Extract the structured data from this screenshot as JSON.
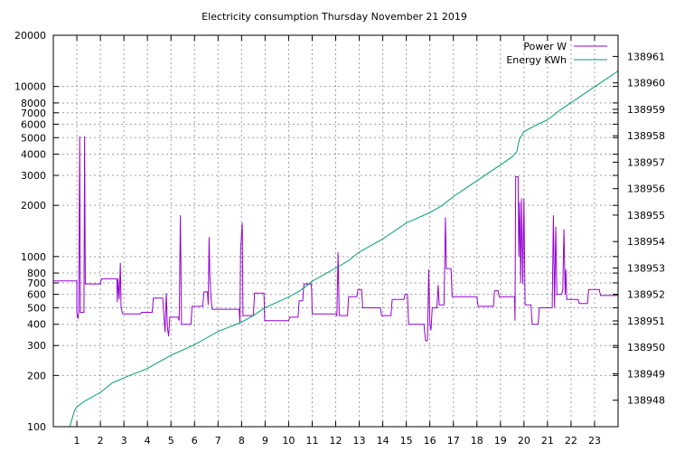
{
  "chart_data": {
    "type": "line",
    "title": "Electricity consumption Thursday November 21 2019",
    "x": {
      "min": 0,
      "max": 24,
      "ticks": [
        1,
        2,
        3,
        4,
        5,
        6,
        7,
        8,
        9,
        10,
        11,
        12,
        13,
        14,
        15,
        16,
        17,
        18,
        19,
        20,
        21,
        22,
        23
      ]
    },
    "y_left": {
      "scale": "log",
      "min": 100,
      "max": 20000,
      "ticks": [
        100,
        200,
        300,
        400,
        500,
        600,
        700,
        800,
        1000,
        2000,
        3000,
        4000,
        5000,
        6000,
        7000,
        8000,
        10000,
        20000
      ],
      "tick_labels": [
        "100",
        "200",
        "300",
        "400",
        "500",
        "600",
        "700",
        "800",
        "1000",
        "2000",
        "3000",
        "4000",
        "5000",
        "6000",
        "7000",
        "8000",
        "10000",
        "20000"
      ]
    },
    "y_right": {
      "scale": "linear",
      "min": 138947.0,
      "max": 138961.8,
      "ticks": [
        138948,
        138949,
        138950,
        138951,
        138952,
        138953,
        138954,
        138955,
        138956,
        138957,
        138958,
        138959,
        138960,
        138961
      ],
      "tick_labels": [
        "138948",
        "138949",
        "138950",
        "138951",
        "138952",
        "138953",
        "138954",
        "138955",
        "138956",
        "138957",
        "138958",
        "138959",
        "138960",
        "138961"
      ]
    },
    "grid": true,
    "legend_position": "top-right",
    "series": [
      {
        "name": "Power W",
        "color": "#9400d3",
        "axis": "left",
        "points": [
          [
            0,
            720
          ],
          [
            1.0,
            720
          ],
          [
            1.0,
            470
          ],
          [
            1.05,
            430
          ],
          [
            1.08,
            470
          ],
          [
            1.12,
            5100
          ],
          [
            1.15,
            470
          ],
          [
            1.3,
            470
          ],
          [
            1.33,
            5100
          ],
          [
            1.36,
            690
          ],
          [
            2.0,
            690
          ],
          [
            2.05,
            740
          ],
          [
            2.7,
            740
          ],
          [
            2.72,
            540
          ],
          [
            2.75,
            740
          ],
          [
            2.8,
            560
          ],
          [
            2.85,
            920
          ],
          [
            2.88,
            500
          ],
          [
            2.95,
            460
          ],
          [
            3.7,
            460
          ],
          [
            3.75,
            470
          ],
          [
            4.2,
            470
          ],
          [
            4.25,
            570
          ],
          [
            4.65,
            570
          ],
          [
            4.7,
            450
          ],
          [
            4.75,
            360
          ],
          [
            4.8,
            610
          ],
          [
            4.85,
            380
          ],
          [
            4.9,
            340
          ],
          [
            4.95,
            440
          ],
          [
            5.3,
            440
          ],
          [
            5.35,
            420
          ],
          [
            5.4,
            1750
          ],
          [
            5.45,
            400
          ],
          [
            5.85,
            400
          ],
          [
            5.9,
            510
          ],
          [
            6.35,
            510
          ],
          [
            6.4,
            620
          ],
          [
            6.55,
            620
          ],
          [
            6.58,
            520
          ],
          [
            6.62,
            1300
          ],
          [
            6.65,
            780
          ],
          [
            6.7,
            570
          ],
          [
            6.75,
            490
          ],
          [
            7.9,
            490
          ],
          [
            7.93,
            410
          ],
          [
            7.96,
            1100
          ],
          [
            8.0,
            1350
          ],
          [
            8.03,
            1580
          ],
          [
            8.06,
            450
          ],
          [
            8.5,
            450
          ],
          [
            8.55,
            610
          ],
          [
            8.95,
            610
          ],
          [
            8.98,
            420
          ],
          [
            10.0,
            420
          ],
          [
            10.05,
            440
          ],
          [
            10.4,
            440
          ],
          [
            10.45,
            550
          ],
          [
            10.6,
            550
          ],
          [
            10.65,
            690
          ],
          [
            10.95,
            690
          ],
          [
            10.98,
            640
          ],
          [
            11.0,
            460
          ],
          [
            12.0,
            460
          ],
          [
            12.05,
            450
          ],
          [
            12.1,
            1060
          ],
          [
            12.15,
            450
          ],
          [
            12.5,
            450
          ],
          [
            12.55,
            580
          ],
          [
            12.9,
            580
          ],
          [
            12.95,
            640
          ],
          [
            13.1,
            640
          ],
          [
            13.15,
            500
          ],
          [
            13.9,
            500
          ],
          [
            13.95,
            450
          ],
          [
            14.35,
            450
          ],
          [
            14.4,
            560
          ],
          [
            14.9,
            560
          ],
          [
            14.95,
            600
          ],
          [
            15.05,
            600
          ],
          [
            15.1,
            400
          ],
          [
            15.75,
            400
          ],
          [
            15.78,
            360
          ],
          [
            15.82,
            320
          ],
          [
            15.9,
            320
          ],
          [
            15.95,
            840
          ],
          [
            16.0,
            400
          ],
          [
            16.05,
            370
          ],
          [
            16.1,
            500
          ],
          [
            16.3,
            500
          ],
          [
            16.35,
            680
          ],
          [
            16.4,
            520
          ],
          [
            16.6,
            520
          ],
          [
            16.63,
            870
          ],
          [
            16.66,
            1700
          ],
          [
            16.7,
            850
          ],
          [
            16.9,
            850
          ],
          [
            16.95,
            580
          ],
          [
            18.0,
            580
          ],
          [
            18.05,
            510
          ],
          [
            18.7,
            510
          ],
          [
            18.75,
            630
          ],
          [
            18.9,
            630
          ],
          [
            18.95,
            580
          ],
          [
            19.6,
            580
          ],
          [
            19.62,
            420
          ],
          [
            19.65,
            2950
          ],
          [
            19.75,
            2950
          ],
          [
            19.78,
            1000
          ],
          [
            19.82,
            2100
          ],
          [
            19.86,
            700
          ],
          [
            19.9,
            2200
          ],
          [
            19.95,
            690
          ],
          [
            20.0,
            2200
          ],
          [
            20.05,
            520
          ],
          [
            20.3,
            520
          ],
          [
            20.35,
            400
          ],
          [
            20.6,
            400
          ],
          [
            20.65,
            500
          ],
          [
            21.2,
            500
          ],
          [
            21.25,
            1750
          ],
          [
            21.3,
            500
          ],
          [
            21.35,
            1500
          ],
          [
            21.4,
            600
          ],
          [
            21.6,
            600
          ],
          [
            21.65,
            640
          ],
          [
            21.7,
            1450
          ],
          [
            21.75,
            600
          ],
          [
            21.78,
            840
          ],
          [
            21.82,
            560
          ],
          [
            22.3,
            560
          ],
          [
            22.35,
            530
          ],
          [
            22.7,
            530
          ],
          [
            22.75,
            640
          ],
          [
            23.2,
            640
          ],
          [
            23.25,
            590
          ],
          [
            24,
            590
          ]
        ]
      },
      {
        "name": "Energy KWh",
        "color": "#009e73",
        "axis": "right",
        "points": [
          [
            0.7,
            138946.95
          ],
          [
            0.9,
            138947.6
          ],
          [
            1.0,
            138947.75
          ],
          [
            1.3,
            138947.95
          ],
          [
            2.0,
            138948.3
          ],
          [
            2.5,
            138948.65
          ],
          [
            3.0,
            138948.85
          ],
          [
            4.0,
            138949.2
          ],
          [
            4.5,
            138949.45
          ],
          [
            5.0,
            138949.7
          ],
          [
            5.5,
            138949.9
          ],
          [
            6.0,
            138950.1
          ],
          [
            6.5,
            138950.35
          ],
          [
            7.0,
            138950.6
          ],
          [
            8.0,
            138950.95
          ],
          [
            8.5,
            138951.2
          ],
          [
            9.0,
            138951.5
          ],
          [
            10.0,
            138951.9
          ],
          [
            10.5,
            138952.15
          ],
          [
            11.0,
            138952.5
          ],
          [
            12.0,
            138953.0
          ],
          [
            12.5,
            138953.25
          ],
          [
            13.0,
            138953.6
          ],
          [
            14.0,
            138954.1
          ],
          [
            14.5,
            138954.4
          ],
          [
            15.0,
            138954.7
          ],
          [
            15.5,
            138954.9
          ],
          [
            16.0,
            138955.1
          ],
          [
            16.5,
            138955.35
          ],
          [
            17.0,
            138955.7
          ],
          [
            18.0,
            138956.3
          ],
          [
            18.5,
            138956.6
          ],
          [
            19.0,
            138956.9
          ],
          [
            19.5,
            138957.2
          ],
          [
            19.7,
            138957.4
          ],
          [
            19.8,
            138957.85
          ],
          [
            20.0,
            138958.15
          ],
          [
            20.5,
            138958.4
          ],
          [
            21.0,
            138958.6
          ],
          [
            21.5,
            138958.95
          ],
          [
            22.0,
            138959.25
          ],
          [
            22.5,
            138959.55
          ],
          [
            23.0,
            138959.85
          ],
          [
            23.5,
            138960.15
          ],
          [
            24.0,
            138960.45
          ]
        ]
      }
    ]
  }
}
